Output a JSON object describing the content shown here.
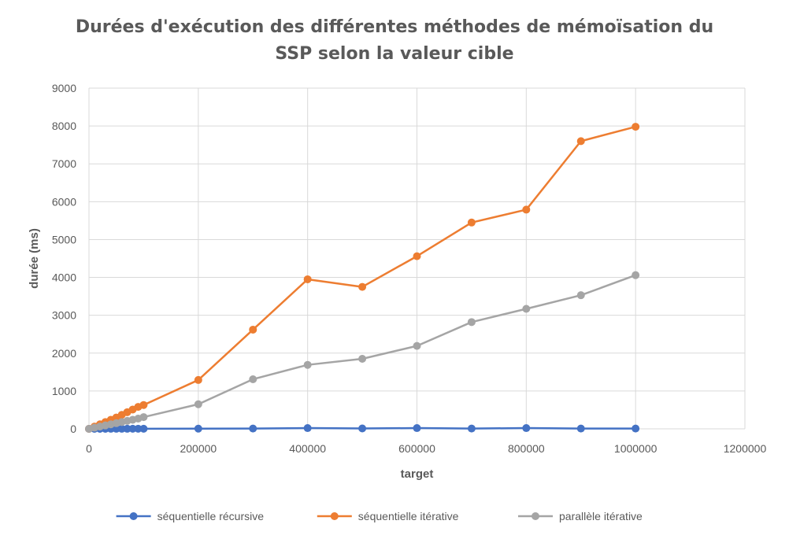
{
  "chart_data": {
    "type": "scatter",
    "title_lines": [
      "Durées d'exécution des différentes méthodes de mémoïsation du",
      "SSP selon la valeur cible"
    ],
    "xlabel": "target",
    "ylabel": "durée (ms)",
    "xlim": [
      0,
      1200000
    ],
    "ylim": [
      0,
      9000
    ],
    "xticks": [
      0,
      200000,
      400000,
      600000,
      800000,
      1000000,
      1200000
    ],
    "yticks": [
      0,
      1000,
      2000,
      3000,
      4000,
      5000,
      6000,
      7000,
      8000,
      9000
    ],
    "grid": true,
    "legend_position": "bottom",
    "x": [
      0,
      10000,
      20000,
      30000,
      40000,
      50000,
      60000,
      70000,
      80000,
      90000,
      100000,
      200000,
      300000,
      400000,
      500000,
      600000,
      700000,
      800000,
      900000,
      1000000
    ],
    "series": [
      {
        "name": "séquentielle récursive",
        "color": "#4472C4",
        "values": [
          0,
          1,
          1,
          1,
          2,
          2,
          2,
          2,
          3,
          3,
          3,
          5,
          8,
          20,
          10,
          20,
          8,
          20,
          8,
          8
        ]
      },
      {
        "name": "séquentielle itérative",
        "color": "#ED7D31",
        "values": [
          0,
          60,
          120,
          180,
          240,
          300,
          370,
          440,
          510,
          580,
          630,
          1290,
          2620,
          3950,
          3750,
          4560,
          5450,
          5790,
          7600,
          7980
        ]
      },
      {
        "name": "parallèle itérative",
        "color": "#A5A5A5",
        "values": [
          0,
          30,
          60,
          90,
          120,
          150,
          180,
          210,
          240,
          270,
          310,
          650,
          1310,
          1690,
          1850,
          2190,
          2820,
          3170,
          3530,
          4060
        ]
      }
    ]
  }
}
